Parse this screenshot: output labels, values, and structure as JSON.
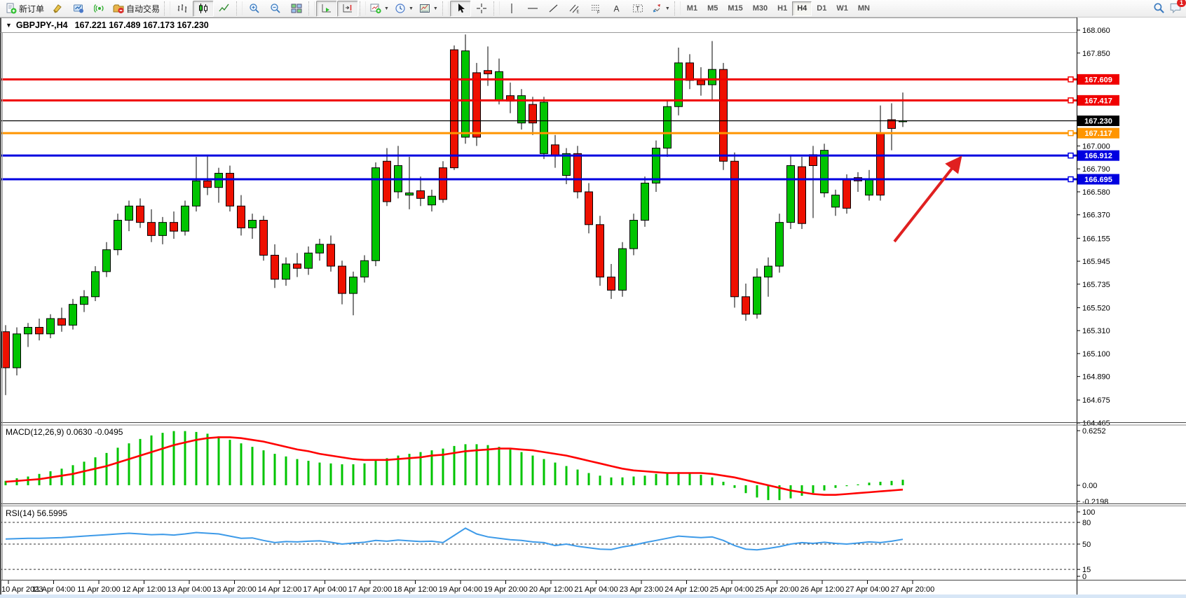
{
  "toolbar": {
    "new_order_label": "新订单",
    "autotrading_label": "自动交易",
    "timeframes": [
      "M1",
      "M5",
      "M15",
      "M30",
      "H1",
      "H4",
      "D1",
      "W1",
      "MN"
    ],
    "active_timeframe": "H4",
    "notification_badge": "1",
    "buttons": [
      {
        "name": "new-order-button",
        "icon": "neworder-icon",
        "label": "新订单"
      },
      {
        "name": "styler-button",
        "icon": "brush-icon"
      },
      {
        "name": "strategy-tester-button",
        "icon": "ea-icon"
      },
      {
        "name": "signals-button",
        "icon": "signal-icon"
      },
      {
        "name": "autotrading-button",
        "icon": "autotrade-icon",
        "label": "自动交易"
      },
      {
        "sep": true
      },
      {
        "name": "bar-chart-button",
        "icon": "bars-icon"
      },
      {
        "name": "candlestick-chart-button",
        "icon": "candles-icon",
        "pressed": true
      },
      {
        "name": "line-chart-button",
        "icon": "linechart-icon"
      },
      {
        "sep": true
      },
      {
        "name": "zoom-in-button",
        "icon": "zoomin-icon"
      },
      {
        "name": "zoom-out-button",
        "icon": "zoomout-icon"
      },
      {
        "name": "tile-windows-button",
        "icon": "tiles-icon"
      },
      {
        "sep": true
      },
      {
        "name": "auto-scroll-button",
        "icon": "autoscroll-icon",
        "pressed": true
      },
      {
        "name": "chart-shift-button",
        "icon": "shift-icon",
        "pressed": true
      },
      {
        "sep": true
      },
      {
        "name": "indicators-button",
        "icon": "indicators-icon",
        "caret": true
      },
      {
        "name": "periods-button",
        "icon": "clock-icon",
        "caret": true
      },
      {
        "name": "templates-button",
        "icon": "template-icon",
        "caret": true
      },
      {
        "sep": true
      },
      {
        "name": "cursor-button",
        "icon": "cursor-icon",
        "pressed": true
      },
      {
        "name": "crosshair-button",
        "icon": "crosshair-icon"
      },
      {
        "sep": true
      },
      {
        "name": "vertical-line-button",
        "icon": "vline-icon"
      },
      {
        "name": "horizontal-line-button",
        "icon": "hline-icon"
      },
      {
        "name": "trendline-button",
        "icon": "trendline-icon"
      },
      {
        "name": "equidistant-channel-button",
        "icon": "channel-icon"
      },
      {
        "name": "fibonacci-button",
        "icon": "fibo-icon"
      },
      {
        "name": "text-button",
        "icon": "text-icon"
      },
      {
        "name": "text-label-button",
        "icon": "textlabel-icon"
      },
      {
        "name": "arrows-button",
        "icon": "arrows-icon",
        "caret": true
      },
      {
        "sep": true
      }
    ]
  },
  "chart_header": {
    "symbol_tf": "GBPJPY-,H4",
    "ohlc": "167.221  167.489  167.173  167.230"
  },
  "colors": {
    "bull": "#00c400",
    "bear": "#ee1000",
    "wick": "#000000",
    "macd_hist": "#00c400",
    "macd_signal": "#ff0000",
    "rsi_line": "#3d9ae8",
    "line_red": "#f00000",
    "line_orange": "#ff9500",
    "line_blue": "#0000e0",
    "bid_line": "#000000",
    "arrow": "#e02020"
  },
  "chart_data": {
    "type": "candlestick",
    "symbol": "GBPJPY-",
    "timeframe": "H4",
    "title": "GBPJPY-,H4 167.221 167.489 167.173 167.230",
    "ylim_top": 168.06,
    "ylim_bottom": 164.465,
    "price_axis_ticks": [
      168.06,
      167.85,
      167.0,
      166.79,
      166.58,
      166.37,
      166.155,
      165.945,
      165.735,
      165.52,
      165.31,
      165.1,
      164.89,
      164.675,
      164.465
    ],
    "price_lines": [
      {
        "price": 167.609,
        "color": "#f00000",
        "handle": true
      },
      {
        "price": 167.417,
        "color": "#f00000",
        "handle": true
      },
      {
        "price": 167.23,
        "color": "#000000",
        "bid": true
      },
      {
        "price": 167.117,
        "color": "#ff9500",
        "handle": true
      },
      {
        "price": 166.912,
        "color": "#0000e0",
        "handle": true
      },
      {
        "price": 166.695,
        "color": "#0000e0",
        "handle": true
      }
    ],
    "x_labels": [
      "10 Apr 2023",
      "11 Apr 04:00",
      "11 Apr 20:00",
      "12 Apr 12:00",
      "13 Apr 04:00",
      "13 Apr 20:00",
      "14 Apr 12:00",
      "17 Apr 04:00",
      "17 Apr 20:00",
      "18 Apr 12:00",
      "19 Apr 04:00",
      "19 Apr 20:00",
      "20 Apr 12:00",
      "21 Apr 04:00",
      "23 Apr 23:00",
      "24 Apr 12:00",
      "25 Apr 04:00",
      "25 Apr 20:00",
      "26 Apr 12:00",
      "27 Apr 04:00",
      "27 Apr 20:00"
    ],
    "candles": [
      [
        165.3,
        165.36,
        164.72,
        164.97
      ],
      [
        164.97,
        165.34,
        164.9,
        165.28
      ],
      [
        165.28,
        165.38,
        165.16,
        165.34
      ],
      [
        165.34,
        165.42,
        165.22,
        165.28
      ],
      [
        165.28,
        165.46,
        165.24,
        165.42
      ],
      [
        165.42,
        165.52,
        165.3,
        165.36
      ],
      [
        165.36,
        165.6,
        165.32,
        165.55
      ],
      [
        165.55,
        165.68,
        165.48,
        165.62
      ],
      [
        165.62,
        165.9,
        165.58,
        165.85
      ],
      [
        165.85,
        166.12,
        165.8,
        166.05
      ],
      [
        166.05,
        166.38,
        166.0,
        166.32
      ],
      [
        166.32,
        166.5,
        166.22,
        166.45
      ],
      [
        166.45,
        166.52,
        166.25,
        166.3
      ],
      [
        166.3,
        166.42,
        166.12,
        166.18
      ],
      [
        166.18,
        166.35,
        166.1,
        166.3
      ],
      [
        166.3,
        166.4,
        166.15,
        166.22
      ],
      [
        166.22,
        166.5,
        166.18,
        166.45
      ],
      [
        166.45,
        166.9,
        166.4,
        166.68
      ],
      [
        166.68,
        166.92,
        166.55,
        166.62
      ],
      [
        166.62,
        166.8,
        166.48,
        166.75
      ],
      [
        166.75,
        166.82,
        166.4,
        166.45
      ],
      [
        166.45,
        166.55,
        166.18,
        166.25
      ],
      [
        166.25,
        166.38,
        166.15,
        166.32
      ],
      [
        166.32,
        166.36,
        165.95,
        166.0
      ],
      [
        166.0,
        166.1,
        165.7,
        165.78
      ],
      [
        165.78,
        165.98,
        165.72,
        165.92
      ],
      [
        165.92,
        166.02,
        165.8,
        165.88
      ],
      [
        165.88,
        166.08,
        165.82,
        166.02
      ],
      [
        166.02,
        166.15,
        165.95,
        166.1
      ],
      [
        166.1,
        166.18,
        165.85,
        165.9
      ],
      [
        165.9,
        165.95,
        165.55,
        165.65
      ],
      [
        165.65,
        165.85,
        165.45,
        165.8
      ],
      [
        165.8,
        166.0,
        165.75,
        165.95
      ],
      [
        165.95,
        166.85,
        165.9,
        166.8
      ],
      [
        166.86,
        166.98,
        166.45,
        166.49
      ],
      [
        166.58,
        167.0,
        166.52,
        166.82
      ],
      [
        166.55,
        166.9,
        166.42,
        166.57
      ],
      [
        166.59,
        166.72,
        166.45,
        166.52
      ],
      [
        166.46,
        166.6,
        166.4,
        166.54
      ],
      [
        166.8,
        166.86,
        166.48,
        166.51
      ],
      [
        167.88,
        167.92,
        166.78,
        166.8
      ],
      [
        167.08,
        168.02,
        167.02,
        167.87
      ],
      [
        167.67,
        167.76,
        167.0,
        167.08
      ],
      [
        167.69,
        167.91,
        167.55,
        167.66
      ],
      [
        167.42,
        167.8,
        167.38,
        167.68
      ],
      [
        167.46,
        167.58,
        167.3,
        167.41
      ],
      [
        167.21,
        167.52,
        167.15,
        167.46
      ],
      [
        167.38,
        167.45,
        167.1,
        167.21
      ],
      [
        166.93,
        167.45,
        166.88,
        167.4
      ],
      [
        167.01,
        167.1,
        166.8,
        166.91
      ],
      [
        166.73,
        166.98,
        166.65,
        166.93
      ],
      [
        166.93,
        167.0,
        166.52,
        166.58
      ],
      [
        166.58,
        166.66,
        166.2,
        166.28
      ],
      [
        166.28,
        166.36,
        165.72,
        165.8
      ],
      [
        165.8,
        165.92,
        165.6,
        165.68
      ],
      [
        165.68,
        166.12,
        165.62,
        166.06
      ],
      [
        166.06,
        166.38,
        166.0,
        166.32
      ],
      [
        166.32,
        166.72,
        166.26,
        166.66
      ],
      [
        166.66,
        167.05,
        166.58,
        166.98
      ],
      [
        166.98,
        167.42,
        166.9,
        167.36
      ],
      [
        167.36,
        167.9,
        167.28,
        167.76
      ],
      [
        167.76,
        167.84,
        167.52,
        167.6
      ],
      [
        167.6,
        167.72,
        167.46,
        167.56
      ],
      [
        167.56,
        167.96,
        167.42,
        167.7
      ],
      [
        167.7,
        167.76,
        166.78,
        166.86
      ],
      [
        166.86,
        166.94,
        165.52,
        165.62
      ],
      [
        165.62,
        165.74,
        165.4,
        165.46
      ],
      [
        165.46,
        165.88,
        165.42,
        165.8
      ],
      [
        165.8,
        165.98,
        165.62,
        165.9
      ],
      [
        165.9,
        166.38,
        165.84,
        166.3
      ],
      [
        166.3,
        166.92,
        166.24,
        166.82
      ],
      [
        166.81,
        166.9,
        166.24,
        166.29
      ],
      [
        166.92,
        167.0,
        166.34,
        166.82
      ],
      [
        166.57,
        167.02,
        166.53,
        166.96
      ],
      [
        166.44,
        166.6,
        166.36,
        166.55
      ],
      [
        166.69,
        166.74,
        166.38,
        166.43
      ],
      [
        166.71,
        166.76,
        166.58,
        166.68
      ],
      [
        166.55,
        166.78,
        166.5,
        166.7
      ],
      [
        167.12,
        167.37,
        166.5,
        166.55
      ],
      [
        167.24,
        167.39,
        166.96,
        167.16
      ],
      [
        167.221,
        167.489,
        167.173,
        167.23
      ]
    ],
    "indicators": {
      "macd": {
        "label": "MACD(12,26,9) 0.0630 -0.0495",
        "params": "12,26,9",
        "value": 0.063,
        "signal_value": -0.0495,
        "axis_labels": [
          "0.6252",
          "0.00",
          "-0.2198"
        ],
        "axis_values": [
          0.6252,
          0.0,
          -0.2198
        ],
        "histogram": [
          0.05,
          0.08,
          0.1,
          0.13,
          0.16,
          0.19,
          0.23,
          0.27,
          0.32,
          0.37,
          0.43,
          0.48,
          0.53,
          0.57,
          0.6,
          0.62,
          0.62,
          0.61,
          0.59,
          0.56,
          0.52,
          0.48,
          0.44,
          0.4,
          0.36,
          0.33,
          0.3,
          0.28,
          0.26,
          0.25,
          0.24,
          0.24,
          0.25,
          0.28,
          0.31,
          0.34,
          0.36,
          0.38,
          0.4,
          0.42,
          0.45,
          0.47,
          0.47,
          0.46,
          0.44,
          0.41,
          0.38,
          0.34,
          0.3,
          0.26,
          0.22,
          0.18,
          0.14,
          0.11,
          0.09,
          0.09,
          0.1,
          0.11,
          0.13,
          0.14,
          0.15,
          0.14,
          0.12,
          0.09,
          0.04,
          -0.03,
          -0.09,
          -0.14,
          -0.17,
          -0.17,
          -0.15,
          -0.12,
          -0.09,
          -0.06,
          -0.03,
          -0.01,
          0.01,
          0.03,
          0.04,
          0.05,
          0.063
        ],
        "signal": [
          0.04,
          0.05,
          0.06,
          0.07,
          0.09,
          0.11,
          0.13,
          0.16,
          0.19,
          0.22,
          0.26,
          0.3,
          0.34,
          0.38,
          0.42,
          0.46,
          0.49,
          0.52,
          0.54,
          0.55,
          0.55,
          0.54,
          0.52,
          0.5,
          0.47,
          0.44,
          0.41,
          0.39,
          0.36,
          0.34,
          0.32,
          0.3,
          0.29,
          0.29,
          0.29,
          0.3,
          0.31,
          0.32,
          0.34,
          0.35,
          0.37,
          0.39,
          0.4,
          0.41,
          0.42,
          0.42,
          0.41,
          0.4,
          0.38,
          0.36,
          0.34,
          0.31,
          0.28,
          0.25,
          0.22,
          0.19,
          0.17,
          0.16,
          0.15,
          0.14,
          0.14,
          0.14,
          0.14,
          0.13,
          0.11,
          0.09,
          0.06,
          0.03,
          0.0,
          -0.03,
          -0.06,
          -0.08,
          -0.1,
          -0.11,
          -0.11,
          -0.1,
          -0.09,
          -0.08,
          -0.07,
          -0.06,
          -0.0495
        ]
      },
      "rsi": {
        "label": "RSI(14) 56.5995",
        "period": 14,
        "value": 56.5995,
        "levels": [
          80,
          50,
          15
        ],
        "axis_labels": [
          "100",
          "80",
          "50",
          "15",
          "0"
        ],
        "axis_values": [
          100,
          80,
          50,
          15,
          0
        ],
        "values": [
          57,
          57.5,
          58,
          58,
          58.5,
          59,
          60,
          61,
          62,
          63,
          64,
          65,
          64,
          63,
          63.5,
          62.5,
          64,
          66,
          65,
          64,
          61,
          58,
          58.5,
          55,
          52,
          53.5,
          53,
          54,
          54.5,
          52.5,
          50,
          51.5,
          52.5,
          55,
          54,
          55.5,
          54.5,
          53.5,
          54,
          52,
          62,
          72,
          64,
          60,
          58,
          56,
          55,
          53,
          52,
          48,
          50,
          47,
          45,
          43,
          42.5,
          46,
          48.5,
          52,
          55,
          58,
          61,
          60,
          59,
          60,
          55,
          48,
          43,
          42,
          44,
          46.5,
          50,
          52,
          51,
          52.5,
          51,
          50,
          51.5,
          53,
          52,
          54,
          56.6
        ]
      }
    },
    "annotation_arrow": {
      "from": [
        1276,
        345
      ],
      "to": [
        1368,
        228
      ],
      "color": "#e02020"
    }
  }
}
